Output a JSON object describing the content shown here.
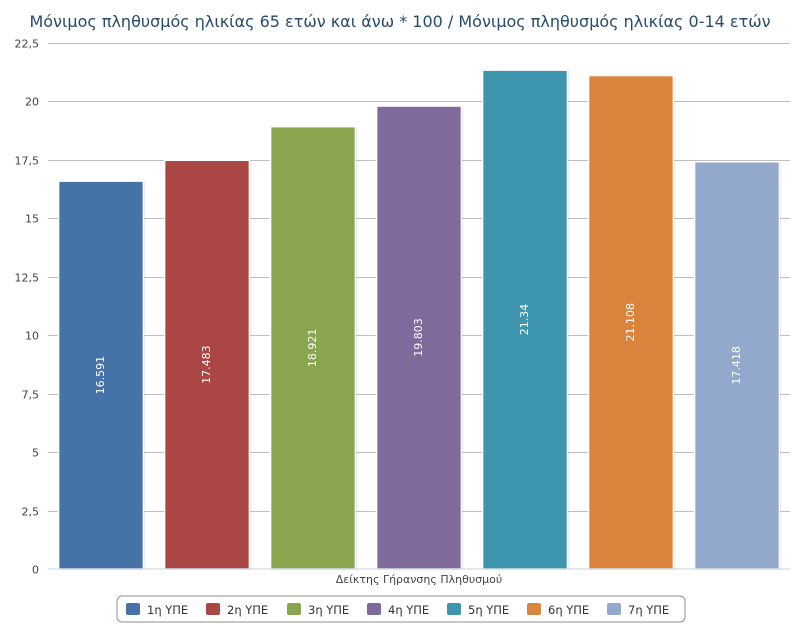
{
  "chart_data": {
    "type": "bar",
    "title": "Μόνιμος πληθυσμός ηλικίας 65 ετών και άνω * 100 / Μόνιμος πληθυσμός ηλικίας 0-14 ετών",
    "xlabel": "Δείκτης Γήρανσης Πληθυσμού",
    "ylabel": "",
    "ylim": [
      0,
      22.5
    ],
    "yticks": [
      "0",
      "2,5",
      "5",
      "7,5",
      "10",
      "12,5",
      "15",
      "17,5",
      "20",
      "22,5"
    ],
    "grid": true,
    "legend_position": "bottom-center",
    "series": [
      {
        "name": "1η ΥΠΕ",
        "value": 16.591,
        "label": "16.591",
        "color": "#4572a7"
      },
      {
        "name": "2η ΥΠΕ",
        "value": 17.483,
        "label": "17.483",
        "color": "#aa4643"
      },
      {
        "name": "3η ΥΠΕ",
        "value": 18.921,
        "label": "18.921",
        "color": "#89a54e"
      },
      {
        "name": "4η ΥΠΕ",
        "value": 19.803,
        "label": "19.803",
        "color": "#80699b"
      },
      {
        "name": "5η ΥΠΕ",
        "value": 21.34,
        "label": "21.34",
        "color": "#3d96ae"
      },
      {
        "name": "6η ΥΠΕ",
        "value": 21.108,
        "label": "21.108",
        "color": "#db843d"
      },
      {
        "name": "7η ΥΠΕ",
        "value": 17.418,
        "label": "17.418",
        "color": "#92a8cd"
      }
    ]
  }
}
